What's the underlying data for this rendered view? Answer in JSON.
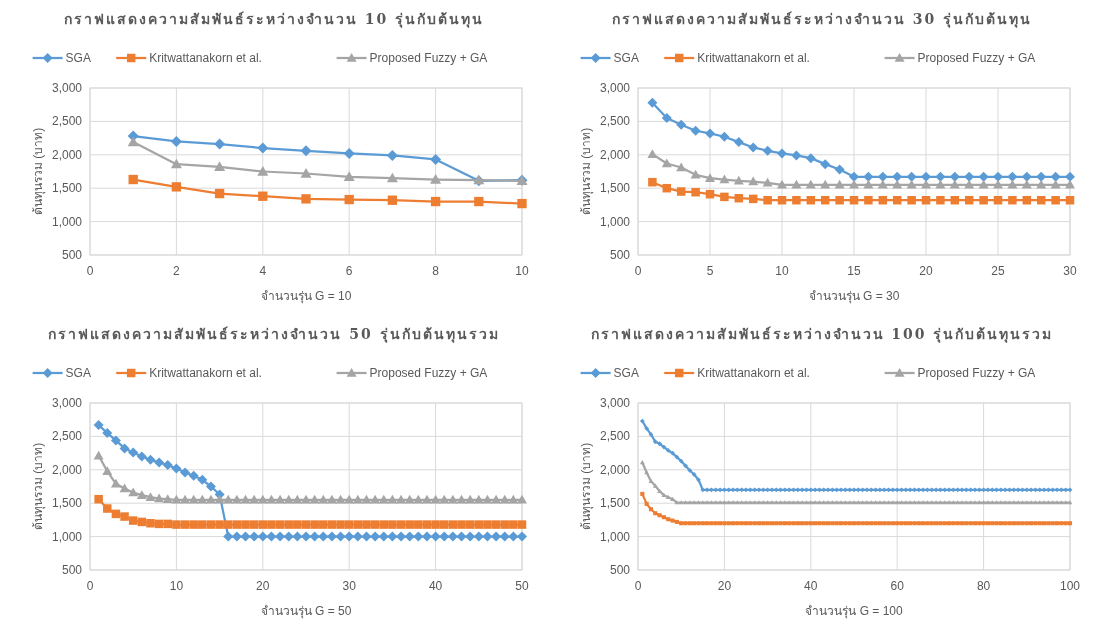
{
  "chart_data": [
    {
      "type": "line",
      "title": "กราฟแสดงความสัมพันธ์ระหว่างจำนวน  10 รุ่นกับต้นทุน",
      "xlabel": "จำนวนรุ่น G = 10",
      "ylabel": "ต้นทุนรวม (บาท)",
      "legend": "top",
      "grid": true,
      "x": [
        1,
        2,
        3,
        4,
        5,
        6,
        7,
        8,
        9,
        10
      ],
      "xlim": [
        0,
        10
      ],
      "xticks": [
        0,
        2,
        4,
        6,
        8,
        10
      ],
      "ylim": [
        500,
        3000
      ],
      "yticks": [
        {
          "value": 500,
          "label": "500"
        },
        {
          "value": 1000,
          "label": "1,000"
        },
        {
          "value": 1500,
          "label": "1,500"
        },
        {
          "value": 2000,
          "label": "2,000"
        },
        {
          "value": 2500,
          "label": "2,500"
        },
        {
          "value": 3000,
          "label": "3,000"
        }
      ],
      "series": [
        {
          "name": "SGA",
          "color": "#5b9bd5",
          "marker": "diamond",
          "values": [
            2280,
            2200,
            2160,
            2100,
            2060,
            2020,
            1990,
            1930,
            1610,
            1620
          ]
        },
        {
          "name": "Kritwattanakorn et al.",
          "color": "#ed7d31",
          "marker": "square",
          "values": [
            1630,
            1520,
            1420,
            1380,
            1340,
            1330,
            1320,
            1300,
            1300,
            1270
          ]
        },
        {
          "name": "Proposed Fuzzy + GA",
          "color": "#a5a5a5",
          "marker": "triangle",
          "values": [
            2190,
            1860,
            1820,
            1750,
            1720,
            1670,
            1650,
            1630,
            1620,
            1610
          ]
        }
      ]
    },
    {
      "type": "line",
      "title": "กราฟแสดงความสัมพันธ์ระหว่างจำนวน  30 รุ่นกับต้นทุน",
      "xlabel": "จำนวนรุ่น G = 30",
      "ylabel": "ต้นทุนรวม (บาท)",
      "legend": "top",
      "grid": true,
      "x": [
        1,
        2,
        3,
        4,
        5,
        6,
        7,
        8,
        9,
        10,
        11,
        12,
        13,
        14,
        15,
        16,
        17,
        18,
        19,
        20,
        21,
        22,
        23,
        24,
        25,
        26,
        27,
        28,
        29,
        30
      ],
      "xlim": [
        0,
        30
      ],
      "xticks": [
        0,
        5,
        10,
        15,
        20,
        25,
        30
      ],
      "ylim": [
        500,
        3000
      ],
      "yticks": [
        {
          "value": 500,
          "label": "500"
        },
        {
          "value": 1000,
          "label": "1,000"
        },
        {
          "value": 1500,
          "label": "1,500"
        },
        {
          "value": 2000,
          "label": "2,000"
        },
        {
          "value": 2500,
          "label": "2,500"
        },
        {
          "value": 3000,
          "label": "3,000"
        }
      ],
      "series": [
        {
          "name": "SGA",
          "color": "#5b9bd5",
          "marker": "diamond",
          "values": [
            2780,
            2550,
            2450,
            2360,
            2320,
            2270,
            2190,
            2110,
            2060,
            2020,
            1990,
            1950,
            1860,
            1780,
            1670,
            1670,
            1670,
            1670,
            1670,
            1670,
            1670,
            1670,
            1670,
            1670,
            1670,
            1670,
            1670,
            1670,
            1670,
            1670
          ]
        },
        {
          "name": "Kritwattanakorn et al.",
          "color": "#ed7d31",
          "marker": "square",
          "values": [
            1590,
            1500,
            1450,
            1440,
            1410,
            1370,
            1350,
            1340,
            1320,
            1320,
            1320,
            1320,
            1320,
            1320,
            1320,
            1320,
            1320,
            1320,
            1320,
            1320,
            1320,
            1320,
            1320,
            1320,
            1320,
            1320,
            1320,
            1320,
            1320,
            1320
          ]
        },
        {
          "name": "Proposed Fuzzy + GA",
          "color": "#a5a5a5",
          "marker": "triangle",
          "values": [
            2010,
            1870,
            1810,
            1700,
            1650,
            1630,
            1610,
            1600,
            1580,
            1550,
            1550,
            1550,
            1550,
            1550,
            1550,
            1550,
            1550,
            1550,
            1550,
            1550,
            1550,
            1550,
            1550,
            1550,
            1550,
            1550,
            1550,
            1550,
            1550,
            1550
          ]
        }
      ]
    },
    {
      "type": "line",
      "title": "กราฟแสดงความสัมพันธ์ระหว่างจำนวน  50 รุ่นกับต้นทุนรวม",
      "xlabel": "จำนวนรุ่น G = 50",
      "ylabel": "ต้นทุนรวม (บาท)",
      "legend": "top",
      "grid": true,
      "x": [
        1,
        2,
        3,
        4,
        5,
        6,
        7,
        8,
        9,
        10,
        11,
        12,
        13,
        14,
        15,
        16,
        17,
        18,
        19,
        20,
        21,
        22,
        23,
        24,
        25,
        26,
        27,
        28,
        29,
        30,
        31,
        32,
        33,
        34,
        35,
        36,
        37,
        38,
        39,
        40,
        41,
        42,
        43,
        44,
        45,
        46,
        47,
        48,
        49,
        50
      ],
      "xlim": [
        0,
        50
      ],
      "xticks": [
        0,
        10,
        20,
        30,
        40,
        50
      ],
      "ylim": [
        500,
        3000
      ],
      "yticks": [
        {
          "value": 500,
          "label": "500"
        },
        {
          "value": 1000,
          "label": "1,000"
        },
        {
          "value": 1500,
          "label": "1,500"
        },
        {
          "value": 2000,
          "label": "2,000"
        },
        {
          "value": 2500,
          "label": "2,500"
        },
        {
          "value": 3000,
          "label": "3,000"
        }
      ],
      "series": [
        {
          "name": "SGA",
          "color": "#5b9bd5",
          "marker": "diamond",
          "values": [
            2670,
            2550,
            2440,
            2320,
            2260,
            2200,
            2150,
            2110,
            2070,
            2020,
            1960,
            1910,
            1850,
            1750,
            1630,
            1000,
            1000,
            1000,
            1000,
            1000,
            1000,
            1000,
            1000,
            1000,
            1000,
            1000,
            1000,
            1000,
            1000,
            1000,
            1000,
            1000,
            1000,
            1000,
            1000,
            1000,
            1000,
            1000,
            1000,
            1000,
            1000,
            1000,
            1000,
            1000,
            1000,
            1000,
            1000,
            1000,
            1000,
            1000
          ]
        },
        {
          "name": "Kritwattanakorn et al.",
          "color": "#ed7d31",
          "marker": "square",
          "values": [
            1560,
            1420,
            1340,
            1300,
            1240,
            1220,
            1200,
            1190,
            1190,
            1180,
            1180,
            1180,
            1180,
            1180,
            1180,
            1180,
            1180,
            1180,
            1180,
            1180,
            1180,
            1180,
            1180,
            1180,
            1180,
            1180,
            1180,
            1180,
            1180,
            1180,
            1180,
            1180,
            1180,
            1180,
            1180,
            1180,
            1180,
            1180,
            1180,
            1180,
            1180,
            1180,
            1180,
            1180,
            1180,
            1180,
            1180,
            1180,
            1180,
            1180
          ]
        },
        {
          "name": "Proposed Fuzzy + GA",
          "color": "#a5a5a5",
          "marker": "triangle",
          "values": [
            2210,
            1980,
            1790,
            1720,
            1660,
            1620,
            1590,
            1570,
            1560,
            1550,
            1550,
            1550,
            1550,
            1550,
            1550,
            1550,
            1550,
            1550,
            1550,
            1550,
            1550,
            1550,
            1550,
            1550,
            1550,
            1550,
            1550,
            1550,
            1550,
            1550,
            1550,
            1550,
            1550,
            1550,
            1550,
            1550,
            1550,
            1550,
            1550,
            1550,
            1550,
            1550,
            1550,
            1550,
            1550,
            1550,
            1550,
            1550,
            1550,
            1550
          ]
        }
      ]
    },
    {
      "type": "line",
      "title": "กราฟแสดงความสัมพันธ์ระหว่างจำนวน 100 รุ่นกับต้นทุนรวม",
      "xlabel": "จำนวนรุ่น G = 100",
      "ylabel": "ต้นทุนรวม (บาท)",
      "legend": "top",
      "grid": true,
      "x": [
        1,
        2,
        3,
        4,
        5,
        6,
        7,
        8,
        9,
        10,
        11,
        12,
        13,
        14,
        15,
        16,
        17,
        18,
        19,
        20,
        21,
        22,
        23,
        24,
        25,
        26,
        27,
        28,
        29,
        30,
        31,
        32,
        33,
        34,
        35,
        36,
        37,
        38,
        39,
        40,
        41,
        42,
        43,
        44,
        45,
        46,
        47,
        48,
        49,
        50,
        51,
        52,
        53,
        54,
        55,
        56,
        57,
        58,
        59,
        60,
        61,
        62,
        63,
        64,
        65,
        66,
        67,
        68,
        69,
        70,
        71,
        72,
        73,
        74,
        75,
        76,
        77,
        78,
        79,
        80,
        81,
        82,
        83,
        84,
        85,
        86,
        87,
        88,
        89,
        90,
        91,
        92,
        93,
        94,
        95,
        96,
        97,
        98,
        99,
        100
      ],
      "xlim": [
        0,
        100
      ],
      "xticks": [
        0,
        20,
        40,
        60,
        80,
        100
      ],
      "ylim": [
        500,
        3000
      ],
      "yticks": [
        {
          "value": 500,
          "label": "500"
        },
        {
          "value": 1000,
          "label": "1,000"
        },
        {
          "value": 1500,
          "label": "1,500"
        },
        {
          "value": 2000,
          "label": "2,000"
        },
        {
          "value": 2500,
          "label": "2,500"
        },
        {
          "value": 3000,
          "label": "3,000"
        }
      ],
      "series": [
        {
          "name": "SGA",
          "color": "#5b9bd5",
          "marker": "diamond",
          "values": [
            2730,
            2620,
            2530,
            2420,
            2390,
            2340,
            2290,
            2250,
            2190,
            2130,
            2060,
            1990,
            1930,
            1850,
            1700,
            1700,
            1700,
            1700,
            1700,
            1700,
            1700,
            1700,
            1700,
            1700,
            1700,
            1700,
            1700,
            1700,
            1700,
            1700,
            1700,
            1700,
            1700,
            1700,
            1700,
            1700,
            1700,
            1700,
            1700,
            1700,
            1700,
            1700,
            1700,
            1700,
            1700,
            1700,
            1700,
            1700,
            1700,
            1700,
            1700,
            1700,
            1700,
            1700,
            1700,
            1700,
            1700,
            1700,
            1700,
            1700,
            1700,
            1700,
            1700,
            1700,
            1700,
            1700,
            1700,
            1700,
            1700,
            1700,
            1700,
            1700,
            1700,
            1700,
            1700,
            1700,
            1700,
            1700,
            1700,
            1700,
            1700,
            1700,
            1700,
            1700,
            1700,
            1700,
            1700,
            1700,
            1700,
            1700,
            1700,
            1700,
            1700,
            1700,
            1700,
            1700,
            1700,
            1700,
            1700,
            1700
          ]
        },
        {
          "name": "Kritwattanakorn et al.",
          "color": "#ed7d31",
          "marker": "square",
          "values": [
            1640,
            1490,
            1410,
            1350,
            1320,
            1290,
            1260,
            1240,
            1220,
            1200,
            1200,
            1200,
            1200,
            1200,
            1200,
            1200,
            1200,
            1200,
            1200,
            1200,
            1200,
            1200,
            1200,
            1200,
            1200,
            1200,
            1200,
            1200,
            1200,
            1200,
            1200,
            1200,
            1200,
            1200,
            1200,
            1200,
            1200,
            1200,
            1200,
            1200,
            1200,
            1200,
            1200,
            1200,
            1200,
            1200,
            1200,
            1200,
            1200,
            1200,
            1200,
            1200,
            1200,
            1200,
            1200,
            1200,
            1200,
            1200,
            1200,
            1200,
            1200,
            1200,
            1200,
            1200,
            1200,
            1200,
            1200,
            1200,
            1200,
            1200,
            1200,
            1200,
            1200,
            1200,
            1200,
            1200,
            1200,
            1200,
            1200,
            1200,
            1200,
            1200,
            1200,
            1200,
            1200,
            1200,
            1200,
            1200,
            1200,
            1200,
            1200,
            1200,
            1200,
            1200,
            1200,
            1200,
            1200,
            1200,
            1200,
            1200
          ]
        },
        {
          "name": "Proposed Fuzzy + GA",
          "color": "#a5a5a5",
          "marker": "triangle",
          "values": [
            2110,
            1960,
            1830,
            1760,
            1680,
            1620,
            1590,
            1560,
            1510,
            1510,
            1510,
            1510,
            1510,
            1510,
            1510,
            1510,
            1510,
            1510,
            1510,
            1510,
            1510,
            1510,
            1510,
            1510,
            1510,
            1510,
            1510,
            1510,
            1510,
            1510,
            1510,
            1510,
            1510,
            1510,
            1510,
            1510,
            1510,
            1510,
            1510,
            1510,
            1510,
            1510,
            1510,
            1510,
            1510,
            1510,
            1510,
            1510,
            1510,
            1510,
            1510,
            1510,
            1510,
            1510,
            1510,
            1510,
            1510,
            1510,
            1510,
            1510,
            1510,
            1510,
            1510,
            1510,
            1510,
            1510,
            1510,
            1510,
            1510,
            1510,
            1510,
            1510,
            1510,
            1510,
            1510,
            1510,
            1510,
            1510,
            1510,
            1510,
            1510,
            1510,
            1510,
            1510,
            1510,
            1510,
            1510,
            1510,
            1510,
            1510,
            1510,
            1510,
            1510,
            1510,
            1510,
            1510,
            1510,
            1510,
            1510,
            1510
          ]
        }
      ]
    }
  ]
}
